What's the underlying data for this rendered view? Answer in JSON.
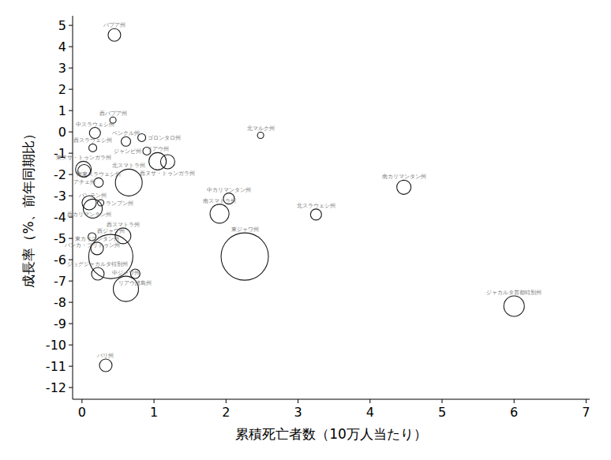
{
  "chart_data": {
    "type": "scatter",
    "x_label": "累積死亡者数（10万人当たり）",
    "y_label": "成長率（%、前年同期比）",
    "labels": [
      "パプア州",
      "西パプア州",
      "中スラウェシ州",
      "ゴロンタロ州",
      "ベンクル州",
      "北マルク州",
      "西スラウェシ州",
      "ジャンビ州",
      "リアウ州",
      "西ヌサ・トゥンガラ州",
      "東ヌサ・トゥンガラ州",
      "アチェ州",
      "南東スラウェシ州",
      "北スマトラ州",
      "中カリマンタン州",
      "南スマトラ州",
      "北スラウェシ州",
      "南カリマンタン州",
      "西カリマンタン州",
      "バンテン州",
      "ランプン州",
      "バンカ・ブリトゥン州",
      "西スマトラ州",
      "西ジャワ州",
      "東ジャワ州",
      "中ジャワ州",
      "東カリマンタン州",
      "ジョグジャカルタ特別州",
      "リアウ諸島州",
      "バリ州",
      "ジャカルタ首都特別州"
    ],
    "x": [
      0.45,
      0.43,
      0.18,
      0.83,
      0.61,
      2.48,
      0.15,
      0.9,
      1.05,
      1.19,
      0.02,
      0.03,
      0.23,
      0.65,
      2.04,
      1.91,
      3.25,
      4.47,
      0.1,
      0.15,
      0.26,
      0.14,
      0.57,
      0.4,
      2.26,
      0.61,
      0.21,
      0.22,
      0.74,
      0.33,
      6.0
    ],
    "values": [
      4.55,
      0.55,
      -0.05,
      -0.27,
      -0.45,
      -0.16,
      -0.75,
      -0.9,
      -1.38,
      -1.4,
      -1.75,
      -1.83,
      -2.38,
      -2.38,
      -3.13,
      -3.84,
      -3.88,
      -2.6,
      -3.33,
      -3.6,
      -3.33,
      -4.92,
      -4.88,
      -5.85,
      -5.85,
      -7.37,
      -5.47,
      -6.66,
      -6.66,
      -10.96,
      -8.18
    ],
    "sizes": [
      64,
      16,
      49,
      25,
      36,
      16,
      25,
      25,
      121,
      81,
      100,
      64,
      36,
      289,
      49,
      144,
      49,
      81,
      81,
      144,
      16,
      25,
      100,
      784,
      900,
      256,
      64,
      64,
      36,
      64,
      169
    ],
    "marker": "circle",
    "color": "#1a1a1a",
    "xlim": [
      -0.13,
      7.05
    ],
    "xticks": [
      0,
      1,
      2,
      3,
      4,
      5,
      6,
      7
    ],
    "ylim": [
      -12.55,
      5.45
    ],
    "yticks": [
      -12,
      -11,
      -10,
      -9,
      -8,
      -7,
      -6,
      -5,
      -4,
      -3,
      -2,
      -1,
      0,
      1,
      2,
      3,
      4,
      5
    ]
  }
}
